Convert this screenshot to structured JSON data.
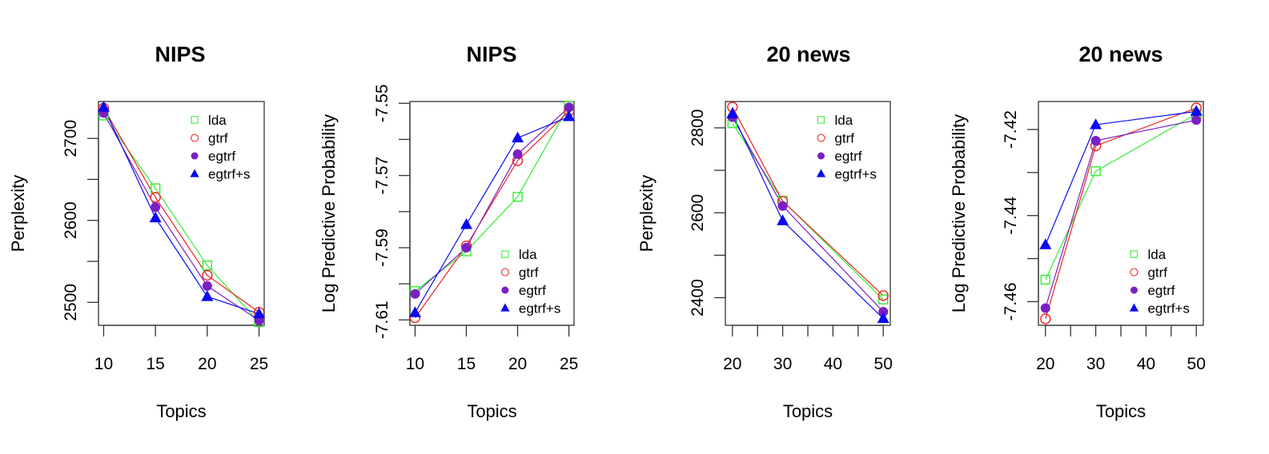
{
  "chart_data": [
    {
      "type": "line",
      "title": "NIPS",
      "xlabel": "Topics",
      "ylabel": "Perplexity",
      "x": [
        10,
        15,
        20,
        25
      ],
      "xticks": [
        10,
        15,
        20,
        25
      ],
      "xtick_labels": [
        "10",
        "15",
        "20",
        "25"
      ],
      "yticks": [
        2500,
        2550,
        2600,
        2650,
        2700
      ],
      "ytick_labels": [
        "2500",
        "",
        "2600",
        "",
        "2700"
      ],
      "ylim": [
        2472,
        2745
      ],
      "xlim": [
        9.5,
        25.5
      ],
      "legend_position": "top-right",
      "series": [
        {
          "name": "lda",
          "values": [
            2728,
            2639,
            2545,
            2476
          ]
        },
        {
          "name": "gtrf",
          "values": [
            2737,
            2628,
            2533,
            2488
          ]
        },
        {
          "name": "egtrf",
          "values": [
            2731,
            2616,
            2520,
            2478
          ]
        },
        {
          "name": "egtrf+s",
          "values": [
            2738,
            2603,
            2507,
            2486
          ]
        }
      ]
    },
    {
      "type": "line",
      "title": "NIPS",
      "xlabel": "Topics",
      "ylabel": "Log Predictive Probability",
      "x": [
        10,
        15,
        20,
        25
      ],
      "xticks": [
        10,
        15,
        20,
        25
      ],
      "xtick_labels": [
        "10",
        "15",
        "20",
        "25"
      ],
      "yticks": [
        -7.61,
        -7.6,
        -7.59,
        -7.58,
        -7.57,
        -7.56,
        -7.55
      ],
      "ytick_labels": [
        "-7.61",
        "",
        "-7.59",
        "",
        "-7.57",
        "",
        "-7.55"
      ],
      "ylim": [
        -7.6115,
        -7.5495
      ],
      "xlim": [
        9.5,
        25.5
      ],
      "legend_position": "bottom-right",
      "series": [
        {
          "name": "lda",
          "values": [
            -7.602,
            -7.591,
            -7.5759,
            -7.5507
          ]
        },
        {
          "name": "gtrf",
          "values": [
            -7.6094,
            -7.5895,
            -7.5659,
            -7.5522
          ]
        },
        {
          "name": "egtrf",
          "values": [
            -7.6028,
            -7.59,
            -7.5641,
            -7.5511
          ]
        },
        {
          "name": "egtrf+s",
          "values": [
            -7.608,
            -7.5836,
            -7.5596,
            -7.5537
          ]
        }
      ]
    },
    {
      "type": "line",
      "title": "20 news",
      "xlabel": "Topics",
      "ylabel": "Perplexity",
      "x": [
        20,
        30,
        50
      ],
      "xticks": [
        20,
        25,
        30,
        35,
        40,
        45,
        50
      ],
      "xtick_labels": [
        "20",
        "",
        "30",
        "",
        "40",
        "",
        "50"
      ],
      "yticks": [
        2400,
        2500,
        2600,
        2700,
        2800
      ],
      "ytick_labels": [
        "2400",
        "",
        "2600",
        "",
        "2800"
      ],
      "ylim": [
        2335,
        2862
      ],
      "xlim": [
        18.6,
        51.4
      ],
      "legend_position": "top-right",
      "series": [
        {
          "name": "lda",
          "values": [
            2811,
            2628,
            2396
          ]
        },
        {
          "name": "gtrf",
          "values": [
            2849,
            2627,
            2405
          ]
        },
        {
          "name": "egtrf",
          "values": [
            2825,
            2616,
            2367
          ]
        },
        {
          "name": "egtrf+s",
          "values": [
            2833,
            2581,
            2351
          ]
        }
      ]
    },
    {
      "type": "line",
      "title": "20 news",
      "xlabel": "Topics",
      "ylabel": "Log Predictive Probability",
      "x": [
        20,
        30,
        50
      ],
      "xticks": [
        20,
        25,
        30,
        35,
        40,
        45,
        50
      ],
      "xtick_labels": [
        "20",
        "",
        "30",
        "",
        "40",
        "",
        "50"
      ],
      "yticks": [
        -7.46,
        -7.45,
        -7.44,
        -7.43,
        -7.42
      ],
      "ytick_labels": [
        "-7.46",
        "",
        "-7.44",
        "",
        "-7.42"
      ],
      "ylim": [
        -7.4655,
        -7.4135
      ],
      "xlim": [
        18.6,
        51.4
      ],
      "legend_position": "bottom-right",
      "series": [
        {
          "name": "lda",
          "values": [
            -7.4549,
            -7.4297,
            -7.4164
          ]
        },
        {
          "name": "gtrf",
          "values": [
            -7.464,
            -7.4238,
            -7.415
          ]
        },
        {
          "name": "egtrf",
          "values": [
            -7.4615,
            -7.4226,
            -7.4178
          ]
        },
        {
          "name": "egtrf+s",
          "values": [
            -7.4468,
            -7.4189,
            -7.4158
          ]
        }
      ]
    }
  ],
  "styles": {
    "lda": {
      "color": "#33ee33",
      "marker": "open-square"
    },
    "gtrf": {
      "color": "#ee2222",
      "marker": "open-circle"
    },
    "egtrf": {
      "color": "#7b1fc4",
      "marker": "filled-circle"
    },
    "egtrf+s": {
      "color": "#0a0aee",
      "marker": "filled-triangle"
    }
  }
}
